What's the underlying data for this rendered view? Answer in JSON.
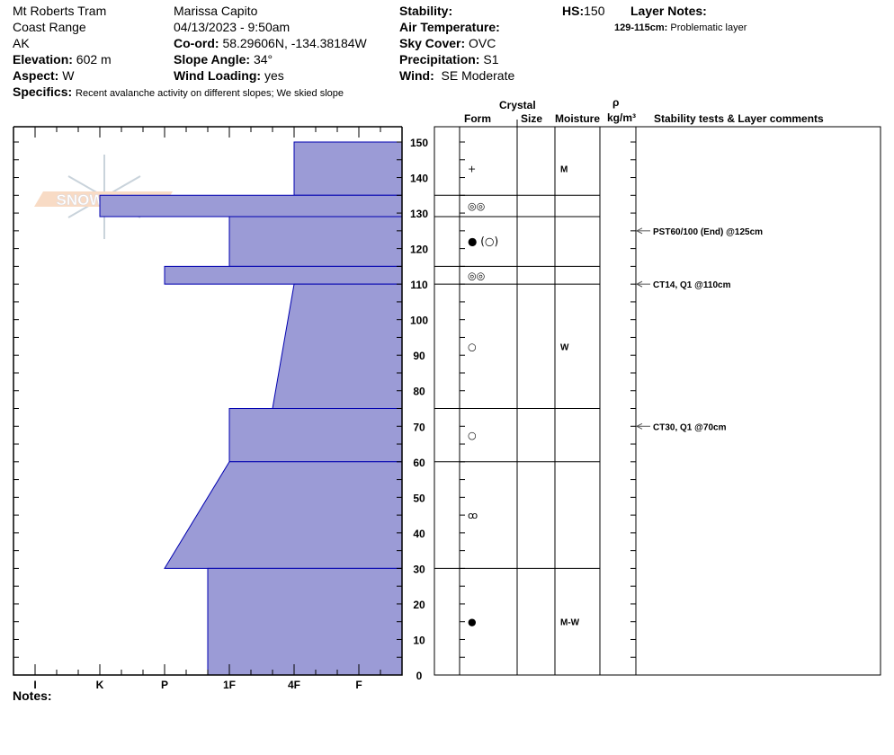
{
  "header": {
    "location": "Mt Roberts Tram",
    "range": "Coast Range",
    "state": "AK",
    "elevation_label": "Elevation:",
    "elevation": "602 m",
    "aspect_label": "Aspect:",
    "aspect": "W",
    "observer": "Marissa Capito",
    "datetime": "04/13/2023 - 9:50am",
    "coord_label": "Co-ord:",
    "coord": "58.29606N, -134.38184W",
    "slope_label": "Slope Angle:",
    "slope": "34°",
    "wind_loading_label": "Wind Loading:",
    "wind_loading": "yes",
    "stability_label": "Stability:",
    "air_temp_label": "Air Temperature:",
    "sky_label": "Sky Cover:",
    "sky": "OVC",
    "precip_label": "Precipitation:",
    "precip": "S1",
    "wind_label": "Wind:",
    "wind": "SE Moderate",
    "hs_label": "HS:",
    "hs": "150",
    "layer_notes_label": "Layer Notes:",
    "layer_note_range": "129-115cm:",
    "layer_note_text": "Problematic layer",
    "specifics_label": "Specifics:",
    "specifics": "Recent avalanche activity on different slopes;  We skied slope"
  },
  "notes_label": "Notes:",
  "logo_text": "SNOWPILOT",
  "table_headers": {
    "crystal": "Crystal",
    "form": "Form",
    "size": "Size",
    "moisture": "Moisture",
    "rho": "ρ",
    "density_unit": "kg/m³",
    "stability": "Stability tests & Layer comments"
  },
  "colors": {
    "hardness_fill": "#9b9bd6",
    "hardness_stroke": "#0000b0"
  },
  "chart_data": {
    "type": "area",
    "xlabel": "",
    "ylabel": "",
    "hardness_scale": [
      "I",
      "K",
      "P",
      "1F",
      "4F",
      "F"
    ],
    "depth_range": [
      0,
      150
    ],
    "depth_ticks": [
      0,
      10,
      20,
      30,
      40,
      50,
      60,
      70,
      80,
      90,
      100,
      110,
      120,
      130,
      140,
      150
    ],
    "layers": [
      {
        "top": 150,
        "bottom": 135,
        "hardness_top": "4F",
        "hardness_bottom": "4F",
        "form": "+",
        "moisture": "M"
      },
      {
        "top": 135,
        "bottom": 129,
        "hardness_top": "K",
        "hardness_bottom": "K",
        "form": "◎◎",
        "moisture": ""
      },
      {
        "top": 129,
        "bottom": 115,
        "hardness_top": "1F",
        "hardness_bottom": "1F",
        "form": "● (○)",
        "moisture": ""
      },
      {
        "top": 115,
        "bottom": 110,
        "hardness_top": "P",
        "hardness_bottom": "P",
        "form": "◎◎",
        "moisture": ""
      },
      {
        "top": 110,
        "bottom": 75,
        "hardness_top": "4F",
        "hardness_bottom": "4F-",
        "form": "○",
        "moisture": "W"
      },
      {
        "top": 75,
        "bottom": 60,
        "hardness_top": "1F",
        "hardness_bottom": "1F",
        "form": "○",
        "moisture": ""
      },
      {
        "top": 60,
        "bottom": 30,
        "hardness_top": "1F",
        "hardness_bottom": "P",
        "form": "ꝏ",
        "moisture": ""
      },
      {
        "top": 30,
        "bottom": 0,
        "hardness_top": "1F-",
        "hardness_bottom": "1F-",
        "form": "●",
        "moisture": "M-W"
      }
    ],
    "stability_tests": [
      {
        "depth": 125,
        "label": "PST60/100 (End) @125cm"
      },
      {
        "depth": 110,
        "label": "CT14, Q1 @110cm"
      },
      {
        "depth": 70,
        "label": "CT30, Q1 @70cm"
      }
    ]
  }
}
